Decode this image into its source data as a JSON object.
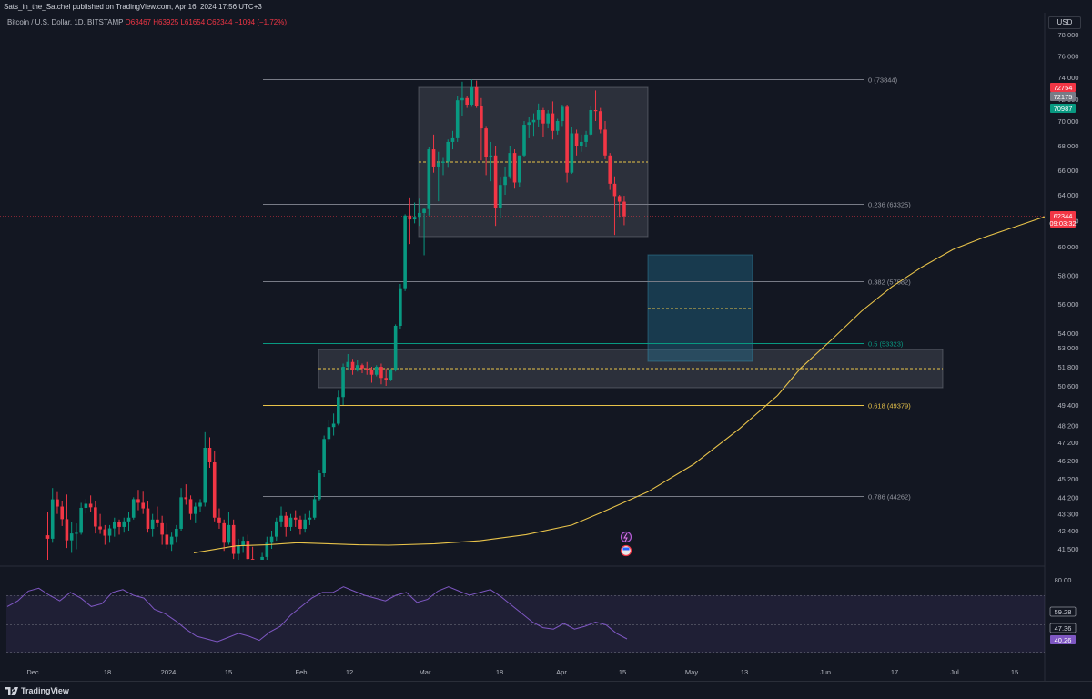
{
  "header": {
    "published": "Sats_in_the_Satchel published on TradingView.com, Apr 16, 2024 17:56 UTC+3"
  },
  "legend": {
    "symbol": "Bitcoin / U.S. Dollar, 1D, BITSTAMP",
    "ohlc": "O63467 H63925 L61654 C62344 −1094 (−1.72%)"
  },
  "currency": "USD",
  "brand": "TradingView",
  "colors": {
    "up": "#089981",
    "down": "#f23645",
    "ma": "#e8c34a",
    "rsi": "#7e57c2",
    "fib_0618": "#e8c34a",
    "fib_05": "#089981",
    "fib_default": "#787b86"
  },
  "chart_data": {
    "type": "candlestick",
    "price_axis_ticks": [
      "78000",
      "76000",
      "74000",
      "72000",
      "70000",
      "68000",
      "66000",
      "64000",
      "62000",
      "60000",
      "58000",
      "56000",
      "54000",
      "53000",
      "51800",
      "50600",
      "49400",
      "48200",
      "47200",
      "46200",
      "45200",
      "44200",
      "43300",
      "42400",
      "41500"
    ],
    "time_axis_ticks": [
      "Dec",
      "18",
      "2024",
      "15",
      "Feb",
      "12",
      "Mar",
      "18",
      "Apr",
      "15",
      "May",
      "13",
      "Jun",
      "17",
      "Jul",
      "15"
    ],
    "fib_levels": [
      {
        "label": "0 (73844)",
        "value": 73844
      },
      {
        "label": "0.236 (63325)",
        "value": 63325
      },
      {
        "label": "0.382 (57582)",
        "value": 57582
      },
      {
        "label": "0.5 (53323)",
        "value": 53323
      },
      {
        "label": "0.618 (49379)",
        "value": 49379
      },
      {
        "label": "0.786 (44262)",
        "value": 44262
      }
    ],
    "price_labels": [
      {
        "text": "72754",
        "color": "#f23645"
      },
      {
        "text": "72175",
        "color": "#787b86"
      },
      {
        "text": "70987",
        "color": "#089981"
      },
      {
        "text": "62344",
        "color": "#f23645"
      },
      {
        "text": "09:03:32",
        "color": "#f23645"
      }
    ],
    "rsi_axis": {
      "tick": "80.00",
      "labels": [
        "59.28",
        "47.36",
        "40.26"
      ]
    },
    "candles": [
      [
        42170,
        43390,
        40900,
        42000
      ],
      [
        42000,
        44700,
        41800,
        44090
      ],
      [
        44090,
        44480,
        43300,
        43700
      ],
      [
        43700,
        44020,
        42650,
        43020
      ],
      [
        43020,
        44350,
        41540,
        41920
      ],
      [
        41920,
        42860,
        41300,
        42260
      ],
      [
        42260,
        42790,
        41480,
        42290
      ],
      [
        42290,
        43900,
        42200,
        43630
      ],
      [
        43630,
        44110,
        43320,
        43850
      ],
      [
        43850,
        44300,
        43400,
        43660
      ],
      [
        43660,
        44000,
        42260,
        42620
      ],
      [
        42620,
        43300,
        42240,
        42470
      ],
      [
        42470,
        42700,
        41700,
        42150
      ],
      [
        42150,
        42700,
        41800,
        42520
      ],
      [
        42520,
        43100,
        42100,
        42850
      ],
      [
        42850,
        43000,
        42200,
        42600
      ],
      [
        42600,
        43100,
        42300,
        42900
      ],
      [
        42900,
        43400,
        42400,
        43100
      ],
      [
        43100,
        44200,
        43000,
        44100
      ],
      [
        44100,
        44600,
        43500,
        43900
      ],
      [
        43900,
        44500,
        43300,
        43600
      ],
      [
        43600,
        44000,
        42300,
        42500
      ],
      [
        42500,
        43300,
        42100,
        43000
      ],
      [
        43000,
        43700,
        42600,
        42800
      ],
      [
        42800,
        43200,
        41700,
        42200
      ],
      [
        42200,
        42800,
        41500,
        41700
      ],
      [
        41700,
        42300,
        41400,
        42100
      ],
      [
        42100,
        42700,
        41800,
        42500
      ],
      [
        42500,
        44700,
        42400,
        44200
      ],
      [
        44200,
        44900,
        43800,
        44100
      ],
      [
        44100,
        44300,
        43000,
        43300
      ],
      [
        43300,
        43900,
        42800,
        43700
      ],
      [
        43700,
        44100,
        43400,
        43900
      ],
      [
        43900,
        47800,
        43700,
        46900
      ],
      [
        46900,
        47500,
        45800,
        46100
      ],
      [
        46100,
        46700,
        42900,
        43100
      ],
      [
        43100,
        43600,
        42500,
        42800
      ],
      [
        42800,
        43000,
        41400,
        41800
      ],
      [
        41800,
        43400,
        41700,
        42700
      ],
      [
        42700,
        43000,
        41000,
        41250
      ],
      [
        41250,
        42000,
        40700,
        41650
      ],
      [
        41650,
        42100,
        41300,
        41900
      ],
      [
        41900,
        42200,
        40600,
        41000
      ],
      [
        41000,
        41600,
        39600,
        40100
      ],
      [
        40100,
        40800,
        39400,
        40000
      ],
      [
        40000,
        41300,
        39900,
        41100
      ],
      [
        41100,
        42100,
        40900,
        41800
      ],
      [
        41800,
        42400,
        41500,
        42100
      ],
      [
        42100,
        43100,
        41900,
        42900
      ],
      [
        42900,
        43700,
        42600,
        43200
      ],
      [
        43200,
        43400,
        42100,
        42600
      ],
      [
        42600,
        43300,
        42400,
        43100
      ],
      [
        43100,
        43500,
        42600,
        43000
      ],
      [
        43000,
        43200,
        42200,
        42500
      ],
      [
        42500,
        43300,
        42300,
        43000
      ],
      [
        43000,
        43500,
        42700,
        43100
      ],
      [
        43100,
        44300,
        43000,
        44100
      ],
      [
        44100,
        45700,
        44000,
        45500
      ],
      [
        45500,
        47600,
        45300,
        47400
      ],
      [
        47400,
        48500,
        47200,
        48100
      ],
      [
        48100,
        48900,
        47600,
        48300
      ],
      [
        48300,
        50300,
        48200,
        49900
      ],
      [
        49900,
        52000,
        49400,
        51800
      ],
      [
        51800,
        52600,
        51600,
        52100
      ],
      [
        52100,
        52300,
        51300,
        51600
      ],
      [
        51600,
        52200,
        51500,
        51900
      ],
      [
        51900,
        52000,
        51400,
        51700
      ],
      [
        51700,
        52100,
        51300,
        51600
      ],
      [
        51600,
        51800,
        50800,
        51300
      ],
      [
        51300,
        51900,
        51200,
        51800
      ],
      [
        51800,
        52000,
        50700,
        51100
      ],
      [
        51100,
        51700,
        50600,
        51000
      ],
      [
        51000,
        51700,
        50900,
        51600
      ],
      [
        51600,
        54600,
        51500,
        54500
      ],
      [
        54500,
        57400,
        54300,
        57100
      ],
      [
        57100,
        62500,
        56900,
        62400
      ],
      [
        62400,
        63800,
        60200,
        62100
      ],
      [
        62100,
        63400,
        61800,
        62300
      ],
      [
        62300,
        63700,
        61600,
        62600
      ],
      [
        62600,
        63000,
        59400,
        62900
      ],
      [
        62900,
        67900,
        62400,
        67700
      ],
      [
        67700,
        68900,
        65800,
        66300
      ],
      [
        66300,
        67500,
        63500,
        66600
      ],
      [
        66600,
        67000,
        65600,
        66700
      ],
      [
        66700,
        68500,
        66200,
        68300
      ],
      [
        68300,
        69200,
        67700,
        68600
      ],
      [
        68600,
        72300,
        68300,
        71900
      ],
      [
        71900,
        73600,
        70500,
        72100
      ],
      [
        72100,
        72300,
        71200,
        71500
      ],
      [
        71500,
        73800,
        71300,
        73100
      ],
      [
        73100,
        73700,
        71200,
        71400
      ],
      [
        71400,
        72100,
        66800,
        69400
      ],
      [
        69400,
        69600,
        65600,
        67100
      ],
      [
        67100,
        68300,
        65100,
        67200
      ],
      [
        67200,
        68000,
        61600,
        63000
      ],
      [
        63000,
        65400,
        62200,
        64800
      ],
      [
        64800,
        66300,
        64000,
        65500
      ],
      [
        65500,
        68000,
        65300,
        67400
      ],
      [
        67400,
        67700,
        64500,
        65000
      ],
      [
        65000,
        67200,
        64600,
        67200
      ],
      [
        67200,
        70000,
        67100,
        69700
      ],
      [
        69700,
        70400,
        68600,
        69900
      ],
      [
        69900,
        70700,
        68800,
        70100
      ],
      [
        70100,
        71600,
        69500,
        71000
      ],
      [
        71000,
        71200,
        68700,
        69800
      ],
      [
        69800,
        71000,
        69400,
        70700
      ],
      [
        70700,
        71800,
        68500,
        69200
      ],
      [
        69200,
        70200,
        68900,
        70000
      ],
      [
        70000,
        71500,
        69600,
        71300
      ],
      [
        71300,
        71500,
        65000,
        65800
      ],
      [
        65800,
        69500,
        65700,
        69000
      ],
      [
        69000,
        69300,
        67200,
        68000
      ],
      [
        68000,
        68900,
        67500,
        68300
      ],
      [
        68300,
        69200,
        67900,
        68900
      ],
      [
        68900,
        71400,
        68800,
        71000
      ],
      [
        71000,
        72800,
        70000,
        70900
      ],
      [
        70900,
        71200,
        69000,
        69300
      ],
      [
        69300,
        70000,
        66900,
        67200
      ],
      [
        67200,
        67400,
        64400,
        64900
      ],
      [
        64900,
        65500,
        60900,
        63900
      ],
      [
        63900,
        64000,
        62300,
        63470
      ],
      [
        63470,
        63925,
        61654,
        62344
      ]
    ],
    "ma": [
      [
        41300,
        0
      ],
      [
        41650,
        3
      ],
      [
        41700,
        5
      ],
      [
        41800,
        7
      ],
      [
        41750,
        9
      ],
      [
        41700,
        11
      ],
      [
        41680,
        13
      ],
      [
        41750,
        16
      ],
      [
        41900,
        19
      ],
      [
        42200,
        22
      ],
      [
        42700,
        25
      ],
      [
        43400,
        27
      ],
      [
        44500,
        30
      ],
      [
        46000,
        33
      ],
      [
        48000,
        36
      ],
      [
        50000,
        38.5
      ],
      [
        51700,
        40
      ],
      [
        53500,
        42
      ],
      [
        55500,
        44
      ],
      [
        57200,
        46
      ],
      [
        58600,
        48
      ],
      [
        59800,
        50
      ],
      [
        60700,
        52
      ],
      [
        61500,
        54
      ],
      [
        62300,
        56
      ],
      [
        63100,
        58
      ],
      [
        63700,
        60
      ],
      [
        64100,
        62
      ],
      [
        64300,
        64
      ],
      [
        64200,
        66
      ]
    ],
    "rsi": [
      62,
      66,
      73,
      75,
      70,
      66,
      72,
      68,
      62,
      64,
      72,
      74,
      70,
      68,
      60,
      57,
      52,
      46,
      41,
      39,
      37,
      40,
      43,
      41,
      38,
      44,
      48,
      56,
      62,
      68,
      72,
      72,
      76,
      73,
      70,
      68,
      66,
      70,
      72,
      65,
      67,
      73,
      76,
      73,
      70,
      72,
      74,
      69,
      63,
      57,
      51,
      47,
      46,
      50,
      46,
      48,
      51,
      49,
      43,
      39
    ]
  }
}
